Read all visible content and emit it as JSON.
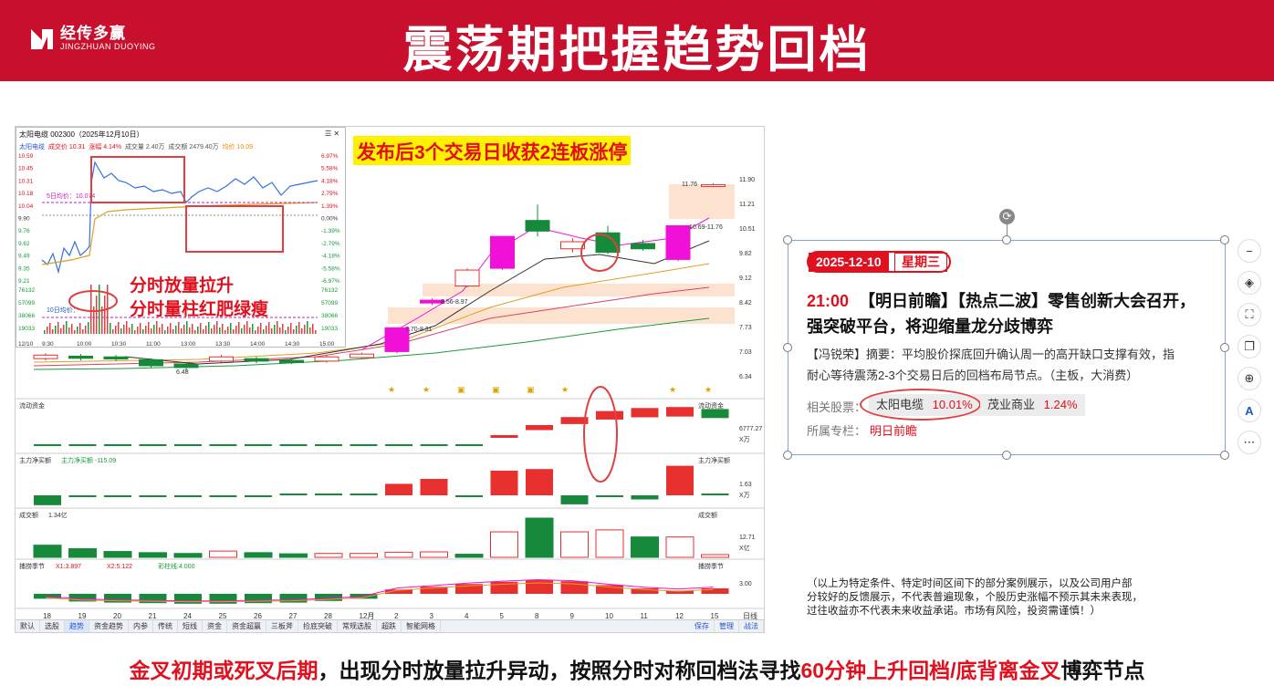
{
  "header": {
    "title": "震荡期把握趋势回档",
    "logo_cn": "经传多赢",
    "logo_en": "JINGZHUAN DUOYING"
  },
  "chart": {
    "stock_title": "太阳电缆 002300（2025年12月10日）",
    "headline": "发布后3个交易日收获2连板涨停",
    "quote_row": {
      "name": "太阳电缆",
      "price": "成交价 10.31",
      "change": "涨幅 4.14%",
      "volume": "成交量 2.40万",
      "amount": "成交额 2479.40万",
      "avg": "均价 10.09"
    },
    "intraday_left_ticks": [
      "10.59",
      "10.45",
      "10.31",
      "10.18",
      "10.04",
      "9.90",
      "9.76",
      "9.62",
      "9.49",
      "9.35",
      "9.21",
      "76132",
      "57099",
      "38066",
      "19033"
    ],
    "intraday_right_ticks": [
      "6.97%",
      "5.58%",
      "4.18%",
      "2.79%",
      "1.39%",
      "0.00%",
      "-1.39%",
      "-2.79%",
      "-4.18%",
      "-5.58%",
      "-6.97%",
      "76132",
      "57099",
      "38066",
      "19033"
    ],
    "intraday_time_ticks": [
      "9:30",
      "10:00",
      "10:30",
      "11:00",
      "13:00",
      "13:30",
      "14:00",
      "14:30",
      "15:00"
    ],
    "intraday_date": "12/10",
    "ma5_label": "5日均价：10.074",
    "ma10_label": "10日均价：",
    "annotation_line1": "分时放量拉升",
    "annotation_line2": "分时量柱红肥绿瘦",
    "kline_right_ticks": [
      "11.90",
      "11.21",
      "10.51",
      "9.82",
      "9.12",
      "8.42",
      "7.73",
      "7.03",
      "6.34"
    ],
    "kline_labels": {
      "low": "6.48",
      "p1": "7.70-8.31",
      "p2": "8.56-8.97",
      "p3": "10.69-11.76",
      "p4": "11.76"
    },
    "panels": {
      "flow_title": "流动资金",
      "flow_right_value": "6777.27",
      "flow_right_unit": "X万",
      "net_title": "主力净买额",
      "net_value": "主力净买额 -115.09",
      "net_right_value": "1.63",
      "net_right_unit": "X万",
      "vol_title": "成交额",
      "vol_value": "1.34亿",
      "vol_right_value": "12.71",
      "vol_right_unit": "X亿",
      "osc_title": "捕捞季节",
      "osc_x1": "X1:3.897",
      "osc_x2": "X2:5.122",
      "osc_extra": "彩柱线:4.000",
      "osc_right_value": "3.00"
    },
    "date_ticks": [
      "18",
      "19",
      "20",
      "21",
      "24",
      "25",
      "26",
      "27",
      "28",
      "12月",
      "2",
      "3",
      "4",
      "5",
      "8",
      "9",
      "10",
      "11",
      "12",
      "15"
    ],
    "date_right": "日线",
    "bottom_tabs": [
      "默认",
      "选股",
      "趋势",
      "资金趋势",
      "内参",
      "传统",
      "短线",
      "资金",
      "资金超赢",
      "三板斧",
      "捡底突破",
      "常规选股",
      "超跌",
      "智能网格"
    ],
    "bottom_tabs_right": [
      "保存",
      "管理",
      "战法"
    ],
    "candles": [
      {
        "o": 6.85,
        "c": 6.95,
        "h": 7.0,
        "l": 6.8
      },
      {
        "o": 6.92,
        "c": 6.86,
        "h": 6.98,
        "l": 6.8
      },
      {
        "o": 6.9,
        "c": 6.84,
        "h": 6.95,
        "l": 6.78
      },
      {
        "o": 6.82,
        "c": 6.65,
        "h": 6.86,
        "l": 6.6
      },
      {
        "o": 6.7,
        "c": 6.6,
        "h": 6.74,
        "l": 6.48
      },
      {
        "o": 6.78,
        "c": 6.9,
        "h": 6.95,
        "l": 6.74
      },
      {
        "o": 6.85,
        "c": 6.78,
        "h": 6.9,
        "l": 6.72
      },
      {
        "o": 6.8,
        "c": 6.74,
        "h": 6.86,
        "l": 6.7
      },
      {
        "o": 6.78,
        "c": 6.9,
        "h": 6.95,
        "l": 6.74
      },
      {
        "o": 6.88,
        "c": 6.98,
        "h": 7.02,
        "l": 6.85
      },
      {
        "o": 7.05,
        "c": 7.72,
        "h": 7.72,
        "l": 7.0
      },
      {
        "o": 8.42,
        "c": 8.5,
        "h": 8.55,
        "l": 8.36
      },
      {
        "o": 8.9,
        "c": 9.35,
        "h": 9.4,
        "l": 8.86
      },
      {
        "o": 9.4,
        "c": 10.3,
        "h": 10.3,
        "l": 9.35
      },
      {
        "o": 10.75,
        "c": 10.45,
        "h": 11.2,
        "l": 10.3
      },
      {
        "o": 9.95,
        "c": 10.15,
        "h": 10.25,
        "l": 9.85
      },
      {
        "o": 10.4,
        "c": 9.85,
        "h": 10.6,
        "l": 9.8
      },
      {
        "o": 10.1,
        "c": 9.95,
        "h": 10.2,
        "l": 9.9
      },
      {
        "o": 9.65,
        "c": 10.6,
        "h": 10.6,
        "l": 9.6
      },
      {
        "o": 11.76,
        "c": 11.76,
        "h": 11.8,
        "l": 11.7
      }
    ],
    "flow_bars": [
      {
        "v": -0.6,
        "k": "g"
      },
      {
        "v": -0.6,
        "k": "g"
      },
      {
        "v": -0.6,
        "k": "g"
      },
      {
        "v": -0.6,
        "k": "g"
      },
      {
        "v": -0.7,
        "k": "g"
      },
      {
        "v": -0.7,
        "k": "g"
      },
      {
        "v": -0.7,
        "k": "g"
      },
      {
        "v": -0.7,
        "k": "g"
      },
      {
        "v": -0.7,
        "k": "g"
      },
      {
        "v": -0.7,
        "k": "g"
      },
      {
        "v": -0.8,
        "k": "g"
      },
      {
        "v": -0.8,
        "k": "g"
      },
      {
        "v": -0.8,
        "k": "g"
      },
      {
        "v": 1.0,
        "k": "r"
      },
      {
        "v": 2.0,
        "k": "r"
      },
      {
        "v": 2.8,
        "k": "r"
      },
      {
        "v": 3.4,
        "k": "r"
      },
      {
        "v": 3.7,
        "k": "r"
      },
      {
        "v": 3.8,
        "k": "r"
      },
      {
        "v": 3.6,
        "k": "g"
      }
    ],
    "net_bars": [
      {
        "v": -1.2,
        "k": "g"
      },
      {
        "v": -0.2,
        "k": "g"
      },
      {
        "v": -0.15,
        "k": "g"
      },
      {
        "v": -0.15,
        "k": "g"
      },
      {
        "v": -0.15,
        "k": "g"
      },
      {
        "v": -0.15,
        "k": "g"
      },
      {
        "v": -0.15,
        "k": "g"
      },
      {
        "v": 0,
        "k": "g"
      },
      {
        "v": 0,
        "k": "g"
      },
      {
        "v": 0,
        "k": "g"
      },
      {
        "v": 1.4,
        "k": "r"
      },
      {
        "v": 2.0,
        "k": "r"
      },
      {
        "v": -0.15,
        "k": "g"
      },
      {
        "v": 3.0,
        "k": "r"
      },
      {
        "v": 3.2,
        "k": "r"
      },
      {
        "v": -1.1,
        "k": "g"
      },
      {
        "v": -0.15,
        "k": "g"
      },
      {
        "v": -0.5,
        "k": "g"
      },
      {
        "v": 3.6,
        "k": "r"
      },
      {
        "v": 0.1,
        "k": "g"
      }
    ],
    "vol_bars": [
      {
        "v": 3.1,
        "k": "g",
        "f": 1
      },
      {
        "v": 2.2,
        "k": "g",
        "f": 1
      },
      {
        "v": 1.5,
        "k": "g",
        "f": 1
      },
      {
        "v": 1.2,
        "k": "g",
        "f": 1
      },
      {
        "v": 1.0,
        "k": "g",
        "f": 1
      },
      {
        "v": 1.6,
        "k": "r",
        "f": 0
      },
      {
        "v": 1.2,
        "k": "g",
        "f": 1
      },
      {
        "v": 0.9,
        "k": "g",
        "f": 1
      },
      {
        "v": 1.0,
        "k": "r",
        "f": 0
      },
      {
        "v": 1.0,
        "k": "r",
        "f": 0
      },
      {
        "v": 1.3,
        "k": "r",
        "f": 0
      },
      {
        "v": 1.4,
        "k": "r",
        "f": 0
      },
      {
        "v": 0.8,
        "k": "g",
        "f": 1
      },
      {
        "v": 6.5,
        "k": "r",
        "f": 0
      },
      {
        "v": 10.0,
        "k": "g",
        "f": 1
      },
      {
        "v": 6.5,
        "k": "r",
        "f": 0
      },
      {
        "v": 7.0,
        "k": "r",
        "f": 0
      },
      {
        "v": 5.2,
        "k": "g",
        "f": 1
      },
      {
        "v": 5.2,
        "k": "r",
        "f": 0
      },
      {
        "v": 0.7,
        "k": "r",
        "f": 0
      }
    ],
    "osc_bars": [
      {
        "v": -0.9,
        "k": "g"
      },
      {
        "v": -1.4,
        "k": "g"
      },
      {
        "v": -1.6,
        "k": "g"
      },
      {
        "v": -1.7,
        "k": "g"
      },
      {
        "v": -1.8,
        "k": "g"
      },
      {
        "v": -1.8,
        "k": "g"
      },
      {
        "v": -1.7,
        "k": "g"
      },
      {
        "v": -1.6,
        "k": "g"
      },
      {
        "v": -1.3,
        "k": "g"
      },
      {
        "v": -0.9,
        "k": "g"
      },
      {
        "v": 0.8,
        "k": "r"
      },
      {
        "v": 1.3,
        "k": "r"
      },
      {
        "v": 1.8,
        "k": "r"
      },
      {
        "v": 2.2,
        "k": "r"
      },
      {
        "v": 2.5,
        "k": "r"
      },
      {
        "v": 2.3,
        "k": "r"
      },
      {
        "v": 1.6,
        "k": "r"
      },
      {
        "v": 1.0,
        "k": "r"
      },
      {
        "v": 0.6,
        "k": "r"
      },
      {
        "v": 1.0,
        "k": "r"
      }
    ]
  },
  "card": {
    "date": "2025-12-10",
    "weekday": "星期三",
    "time": "21:00",
    "headline": "【明日前瞻】【热点二波】零售创新大会召开，",
    "headline2": "强突破平台，将迎缩量龙分歧博弈",
    "summary_line1": "【冯锐荣】摘要：平均股价探底回升确认周一的高开缺口支撑有效，指",
    "summary_line2": "耐心等待震荡2-3个交易日后的回档布局节点。（主板，大消费）",
    "related_label": "相关股票：",
    "stocks": [
      {
        "name": "太阳电缆",
        "pct": "10.01%"
      },
      {
        "name": "茂业商业",
        "pct": "1.24%"
      }
    ],
    "column_label": "所属专栏：",
    "column_value": "明日前瞻"
  },
  "side_tools": [
    "minus-icon",
    "layers-icon",
    "crop-icon",
    "copy-icon",
    "zoom-in-icon",
    "text-recognize-icon",
    "more-icon"
  ],
  "disclaimer": [
    "（以上为特定条件、特定时间区间下的部分案例展示，以及公司用户部",
    "分较好的反馈展示，不代表普遍现象，个股历史涨幅不预示其未来表现，",
    "过往收益亦不代表未来收益承诺。市场有风险，投资需谨慎！）"
  ],
  "footer": {
    "part1": "金叉初期或死叉后期",
    "part2": "，出现分时放量拉升异动，按照分时对称回档法寻找",
    "part3": "60分钟上升回档/底背离金叉",
    "part4": "博弈节点"
  },
  "colors": {
    "banner": "#c8102e",
    "up": "#e8312f",
    "down": "#168a3a",
    "limit": "#f010d8"
  }
}
